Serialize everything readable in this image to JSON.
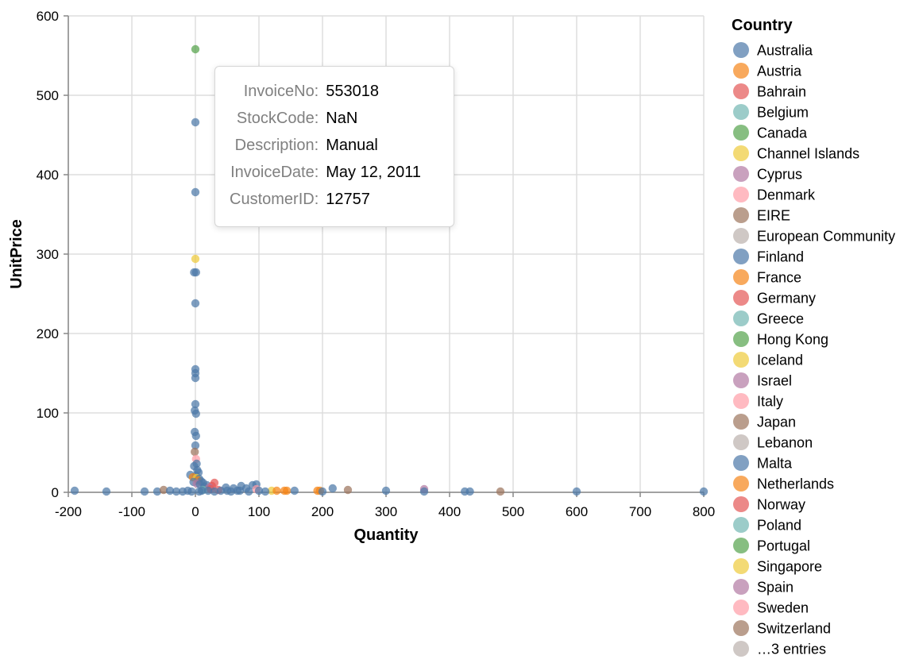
{
  "chart_data": {
    "type": "scatter",
    "xlabel": "Quantity",
    "ylabel": "UnitPrice",
    "xlim": [
      -200,
      800
    ],
    "ylim": [
      0,
      600
    ],
    "x_ticks": [
      "-200",
      "-100",
      "0",
      "100",
      "200",
      "300",
      "400",
      "500",
      "600",
      "700",
      "800"
    ],
    "y_ticks": [
      "0",
      "100",
      "200",
      "300",
      "400",
      "500",
      "600"
    ],
    "grid": true,
    "legend": {
      "title": "Country",
      "placement": "right",
      "entries": [
        {
          "label": "Australia",
          "color": "#4c78a8"
        },
        {
          "label": "Austria",
          "color": "#f58518"
        },
        {
          "label": "Bahrain",
          "color": "#e45756"
        },
        {
          "label": "Belgium",
          "color": "#72b7b2"
        },
        {
          "label": "Canada",
          "color": "#54a24b"
        },
        {
          "label": "Channel Islands",
          "color": "#eeca3b"
        },
        {
          "label": "Cyprus",
          "color": "#b279a2"
        },
        {
          "label": "Denmark",
          "color": "#ff9da6"
        },
        {
          "label": "EIRE",
          "color": "#9d755d"
        },
        {
          "label": "European Community",
          "color": "#bab0ac"
        },
        {
          "label": "Finland",
          "color": "#4c78a8"
        },
        {
          "label": "France",
          "color": "#f58518"
        },
        {
          "label": "Germany",
          "color": "#e45756"
        },
        {
          "label": "Greece",
          "color": "#72b7b2"
        },
        {
          "label": "Hong Kong",
          "color": "#54a24b"
        },
        {
          "label": "Iceland",
          "color": "#eeca3b"
        },
        {
          "label": "Israel",
          "color": "#b279a2"
        },
        {
          "label": "Italy",
          "color": "#ff9da6"
        },
        {
          "label": "Japan",
          "color": "#9d755d"
        },
        {
          "label": "Lebanon",
          "color": "#bab0ac"
        },
        {
          "label": "Malta",
          "color": "#4c78a8"
        },
        {
          "label": "Netherlands",
          "color": "#f58518"
        },
        {
          "label": "Norway",
          "color": "#e45756"
        },
        {
          "label": "Poland",
          "color": "#72b7b2"
        },
        {
          "label": "Portugal",
          "color": "#54a24b"
        },
        {
          "label": "Singapore",
          "color": "#eeca3b"
        },
        {
          "label": "Spain",
          "color": "#b279a2"
        },
        {
          "label": "Sweden",
          "color": "#ff9da6"
        },
        {
          "label": "Switzerland",
          "color": "#9d755d"
        },
        {
          "label": "…3 entries",
          "color": "#bab0ac"
        }
      ]
    },
    "points": [
      {
        "x": 0,
        "y": 558,
        "color": "#54a24b"
      },
      {
        "x": 0,
        "y": 466,
        "color": "#4c78a8"
      },
      {
        "x": 0,
        "y": 378,
        "color": "#4c78a8"
      },
      {
        "x": 0,
        "y": 294,
        "color": "#eeca3b"
      },
      {
        "x": -2,
        "y": 277,
        "color": "#4c78a8"
      },
      {
        "x": 1,
        "y": 277,
        "color": "#4c78a8"
      },
      {
        "x": 0,
        "y": 238,
        "color": "#4c78a8"
      },
      {
        "x": 0,
        "y": 155,
        "color": "#4c78a8"
      },
      {
        "x": 0,
        "y": 150,
        "color": "#4c78a8"
      },
      {
        "x": 0,
        "y": 144,
        "color": "#4c78a8"
      },
      {
        "x": 0,
        "y": 111,
        "color": "#4c78a8"
      },
      {
        "x": -1,
        "y": 103,
        "color": "#4c78a8"
      },
      {
        "x": 1,
        "y": 99,
        "color": "#4c78a8"
      },
      {
        "x": -1,
        "y": 76,
        "color": "#4c78a8"
      },
      {
        "x": 1,
        "y": 71,
        "color": "#4c78a8"
      },
      {
        "x": 0,
        "y": 59,
        "color": "#4c78a8"
      },
      {
        "x": -1,
        "y": 51,
        "color": "#9d755d"
      },
      {
        "x": 1,
        "y": 42,
        "color": "#ff9da6"
      },
      {
        "x": 2,
        "y": 36,
        "color": "#4c78a8"
      },
      {
        "x": -2,
        "y": 33,
        "color": "#4c78a8"
      },
      {
        "x": 3,
        "y": 28,
        "color": "#4c78a8"
      },
      {
        "x": 5,
        "y": 25,
        "color": "#4c78a8"
      },
      {
        "x": -8,
        "y": 22,
        "color": "#4c78a8"
      },
      {
        "x": 1,
        "y": 21,
        "color": "#4c78a8"
      },
      {
        "x": -4,
        "y": 19,
        "color": "#f58518"
      },
      {
        "x": 2,
        "y": 18,
        "color": "#eeca3b"
      },
      {
        "x": 6,
        "y": 17,
        "color": "#4c78a8"
      },
      {
        "x": 4,
        "y": 15,
        "color": "#f58518"
      },
      {
        "x": 9,
        "y": 14,
        "color": "#4c78a8"
      },
      {
        "x": -3,
        "y": 13,
        "color": "#4c78a8"
      },
      {
        "x": 12,
        "y": 12,
        "color": "#4c78a8"
      },
      {
        "x": 30,
        "y": 12,
        "color": "#e45756"
      },
      {
        "x": 2,
        "y": 11,
        "color": "#b279a2"
      },
      {
        "x": 7,
        "y": 10,
        "color": "#4c78a8"
      },
      {
        "x": 18,
        "y": 9,
        "color": "#4c78a8"
      },
      {
        "x": 26,
        "y": 8,
        "color": "#e45756"
      },
      {
        "x": 72,
        "y": 8,
        "color": "#4c78a8"
      },
      {
        "x": 90,
        "y": 9,
        "color": "#4c78a8"
      },
      {
        "x": 96,
        "y": 10,
        "color": "#4c78a8"
      },
      {
        "x": 14,
        "y": 7,
        "color": "#4c78a8"
      },
      {
        "x": 22,
        "y": 6,
        "color": "#b279a2"
      },
      {
        "x": 48,
        "y": 6,
        "color": "#4c78a8"
      },
      {
        "x": 60,
        "y": 5,
        "color": "#4c78a8"
      },
      {
        "x": 80,
        "y": 5,
        "color": "#4c78a8"
      },
      {
        "x": 96,
        "y": 4,
        "color": "#ff9da6"
      },
      {
        "x": 216,
        "y": 5,
        "color": "#4c78a8"
      },
      {
        "x": 240,
        "y": 3,
        "color": "#9d755d"
      },
      {
        "x": 360,
        "y": 4,
        "color": "#b279a2"
      },
      {
        "x": 24,
        "y": 4,
        "color": "#e45756"
      },
      {
        "x": 36,
        "y": 3,
        "color": "#e45756"
      },
      {
        "x": 12,
        "y": 3,
        "color": "#72b7b2"
      },
      {
        "x": 10,
        "y": 2,
        "color": "#4c78a8"
      },
      {
        "x": 20,
        "y": 2,
        "color": "#4c78a8"
      },
      {
        "x": 40,
        "y": 2,
        "color": "#4c78a8"
      },
      {
        "x": 50,
        "y": 2,
        "color": "#4c78a8"
      },
      {
        "x": 66,
        "y": 2,
        "color": "#4c78a8"
      },
      {
        "x": 70,
        "y": 2,
        "color": "#4c78a8"
      },
      {
        "x": 100,
        "y": 2,
        "color": "#4c78a8"
      },
      {
        "x": 120,
        "y": 2,
        "color": "#eeca3b"
      },
      {
        "x": 128,
        "y": 2,
        "color": "#f58518"
      },
      {
        "x": 140,
        "y": 2,
        "color": "#f58518"
      },
      {
        "x": 144,
        "y": 2,
        "color": "#f58518"
      },
      {
        "x": 156,
        "y": 2,
        "color": "#4c78a8"
      },
      {
        "x": 192,
        "y": 2,
        "color": "#f58518"
      },
      {
        "x": 196,
        "y": 2,
        "color": "#f58518"
      },
      {
        "x": 200,
        "y": 1,
        "color": "#4c78a8"
      },
      {
        "x": 300,
        "y": 2,
        "color": "#4c78a8"
      },
      {
        "x": 360,
        "y": 1,
        "color": "#4c78a8"
      },
      {
        "x": 424,
        "y": 1,
        "color": "#4c78a8"
      },
      {
        "x": 432,
        "y": 1,
        "color": "#4c78a8"
      },
      {
        "x": 480,
        "y": 1,
        "color": "#9d755d"
      },
      {
        "x": 600,
        "y": 1,
        "color": "#4c78a8"
      },
      {
        "x": 800,
        "y": 1,
        "color": "#4c78a8"
      },
      {
        "x": -190,
        "y": 2,
        "color": "#4c78a8"
      },
      {
        "x": -140,
        "y": 1,
        "color": "#4c78a8"
      },
      {
        "x": -80,
        "y": 1,
        "color": "#4c78a8"
      },
      {
        "x": -60,
        "y": 1,
        "color": "#4c78a8"
      },
      {
        "x": -50,
        "y": 3,
        "color": "#9d755d"
      },
      {
        "x": -40,
        "y": 2,
        "color": "#4c78a8"
      },
      {
        "x": -30,
        "y": 1,
        "color": "#4c78a8"
      },
      {
        "x": -20,
        "y": 1,
        "color": "#4c78a8"
      },
      {
        "x": -12,
        "y": 2,
        "color": "#4c78a8"
      },
      {
        "x": -6,
        "y": 1,
        "color": "#4c78a8"
      },
      {
        "x": 6,
        "y": 1,
        "color": "#4c78a8"
      },
      {
        "x": 30,
        "y": 1,
        "color": "#4c78a8"
      },
      {
        "x": 56,
        "y": 1,
        "color": "#4c78a8"
      },
      {
        "x": 84,
        "y": 1,
        "color": "#4c78a8"
      },
      {
        "x": 110,
        "y": 1,
        "color": "#4c78a8"
      }
    ]
  },
  "tooltip": {
    "rows": [
      {
        "key": "InvoiceNo:",
        "value": "553018"
      },
      {
        "key": "StockCode:",
        "value": "NaN"
      },
      {
        "key": "Description:",
        "value": "Manual"
      },
      {
        "key": "InvoiceDate:",
        "value": "May 12, 2011"
      },
      {
        "key": "CustomerID:",
        "value": "12757"
      }
    ]
  }
}
